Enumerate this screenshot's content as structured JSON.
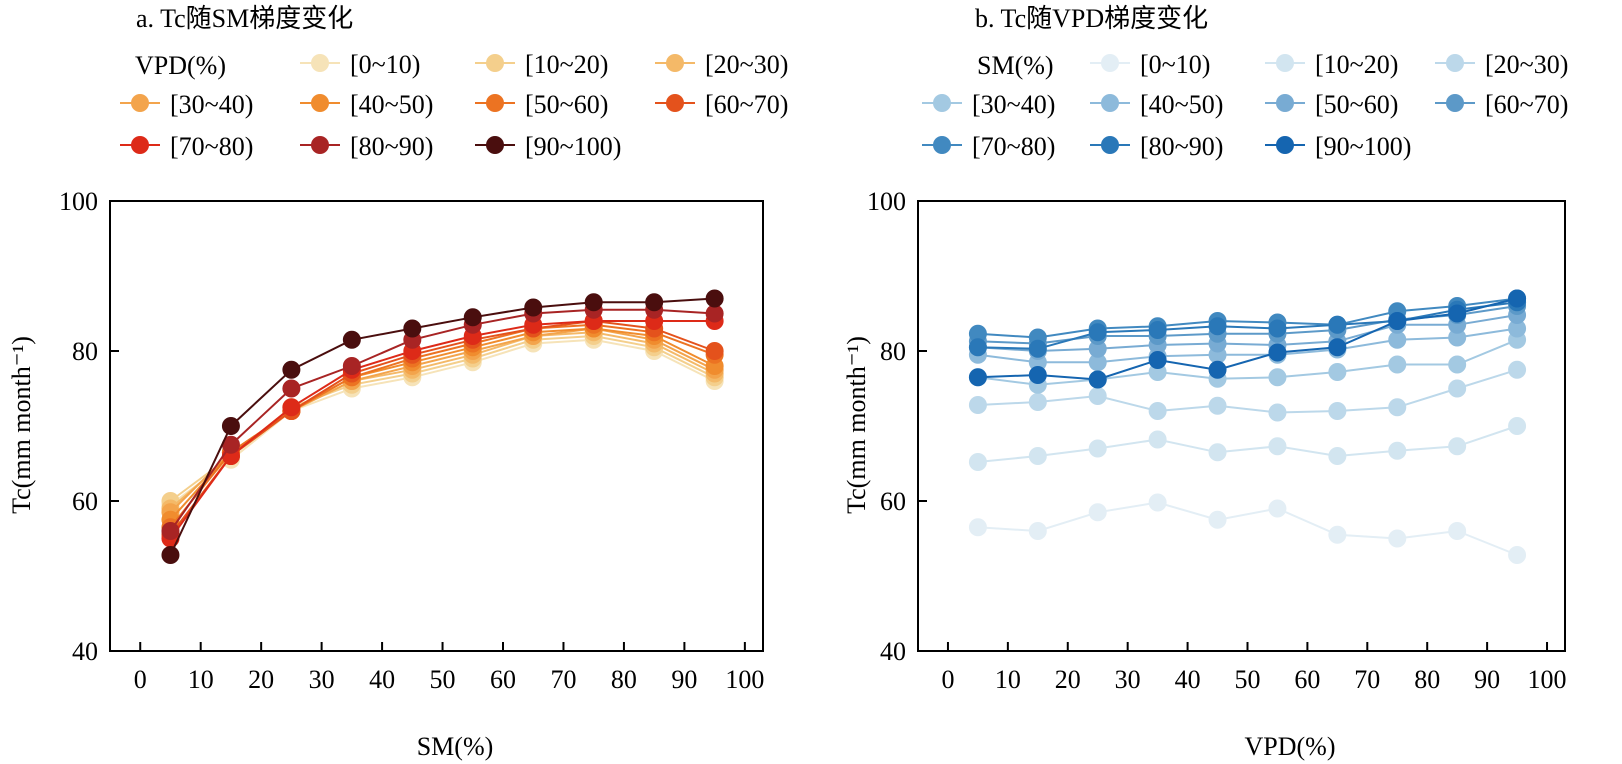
{
  "figure": {
    "panels": [
      {
        "title": "a. Tc随SM梯度变化",
        "legend_title": "VPD(%)",
        "xlabel": "SM(%)",
        "ylabel": "Tc(mm month⁻¹)"
      },
      {
        "title": "b. Tc随VPD梯度变化",
        "legend_title": "SM(%)",
        "xlabel": "VPD(%)",
        "ylabel": "Tc(mm month⁻¹)"
      }
    ]
  },
  "chart_data": [
    {
      "type": "line",
      "title": "a. Tc随SM梯度变化",
      "xlabel": "SM(%)",
      "ylabel": "Tc(mm month⁻¹)",
      "legend_title": "VPD(%)",
      "legend_position": "top",
      "xlim": [
        -5,
        103
      ],
      "ylim": [
        40,
        100
      ],
      "xticks": [
        0,
        10,
        20,
        30,
        40,
        50,
        60,
        70,
        80,
        90,
        100
      ],
      "yticks": [
        40,
        60,
        80,
        100
      ],
      "grid": false,
      "x": [
        5,
        15,
        25,
        35,
        45,
        55,
        65,
        75,
        85,
        95
      ],
      "series": [
        {
          "name": "[0~10)",
          "color": "#f6e3b8",
          "values": [
            59.5,
            65.5,
            72.0,
            75.0,
            76.5,
            78.5,
            81.0,
            81.5,
            80.0,
            76.0
          ]
        },
        {
          "name": "[10~20)",
          "color": "#f4cf8c",
          "values": [
            60.0,
            66.0,
            72.5,
            75.5,
            77.0,
            79.0,
            81.5,
            82.0,
            80.5,
            76.5
          ]
        },
        {
          "name": "[20~30)",
          "color": "#f4b968",
          "values": [
            59.0,
            66.0,
            72.0,
            76.0,
            77.5,
            79.5,
            82.0,
            82.5,
            81.0,
            77.0
          ]
        },
        {
          "name": "[30~40)",
          "color": "#f3a44c",
          "values": [
            58.5,
            66.5,
            72.0,
            76.0,
            78.0,
            80.0,
            82.0,
            83.0,
            81.5,
            77.5
          ]
        },
        {
          "name": "[40~50)",
          "color": "#f08c2e",
          "values": [
            57.5,
            66.5,
            72.0,
            76.5,
            78.5,
            80.5,
            82.5,
            83.0,
            82.0,
            78.0
          ]
        },
        {
          "name": "[50~60)",
          "color": "#ec7322",
          "values": [
            56.5,
            66.5,
            72.0,
            76.5,
            79.0,
            81.0,
            83.0,
            83.5,
            82.5,
            79.5
          ]
        },
        {
          "name": "[60~70)",
          "color": "#e4521c",
          "values": [
            55.5,
            66.0,
            72.0,
            77.0,
            79.5,
            81.5,
            83.0,
            84.0,
            83.0,
            80.0
          ]
        },
        {
          "name": "[70~80)",
          "color": "#dd2a18",
          "values": [
            55.0,
            66.0,
            72.5,
            77.5,
            80.0,
            82.0,
            83.5,
            84.0,
            84.0,
            84.0
          ]
        },
        {
          "name": "[80~90)",
          "color": "#a82424",
          "values": [
            56.0,
            67.5,
            75.0,
            78.0,
            81.5,
            83.5,
            85.0,
            85.5,
            85.5,
            85.0
          ]
        },
        {
          "name": "[90~100)",
          "color": "#4a0e0e",
          "values": [
            52.8,
            70.0,
            77.5,
            81.5,
            83.0,
            84.5,
            85.8,
            86.5,
            86.5,
            87.0
          ]
        }
      ]
    },
    {
      "type": "line",
      "title": "b. Tc随VPD梯度变化",
      "xlabel": "VPD(%)",
      "ylabel": "Tc(mm month⁻¹)",
      "legend_title": "SM(%)",
      "legend_position": "top",
      "xlim": [
        -5,
        103
      ],
      "ylim": [
        40,
        100
      ],
      "xticks": [
        0,
        10,
        20,
        30,
        40,
        50,
        60,
        70,
        80,
        90,
        100
      ],
      "yticks": [
        40,
        60,
        80,
        100
      ],
      "grid": false,
      "x": [
        5,
        15,
        25,
        35,
        45,
        55,
        65,
        75,
        85,
        95
      ],
      "series": [
        {
          "name": "[0~10)",
          "color": "#e3eef5",
          "values": [
            56.5,
            56.0,
            58.5,
            59.8,
            57.5,
            59.0,
            55.5,
            55.0,
            56.0,
            52.8
          ]
        },
        {
          "name": "[10~20)",
          "color": "#d2e5f0",
          "values": [
            65.2,
            66.0,
            67.0,
            68.2,
            66.5,
            67.3,
            66.0,
            66.7,
            67.3,
            70.0
          ]
        },
        {
          "name": "[20~30)",
          "color": "#bcd8ea",
          "values": [
            72.8,
            73.2,
            74.0,
            72.0,
            72.7,
            71.8,
            72.0,
            72.5,
            75.0,
            77.5
          ]
        },
        {
          "name": "[30~40)",
          "color": "#a3c9e2",
          "values": [
            76.5,
            75.5,
            76.2,
            77.2,
            76.3,
            76.5,
            77.2,
            78.2,
            78.2,
            81.5
          ]
        },
        {
          "name": "[40~50)",
          "color": "#8dbadb",
          "values": [
            79.5,
            78.5,
            78.5,
            79.3,
            79.5,
            79.5,
            80.2,
            81.5,
            81.8,
            83.0
          ]
        },
        {
          "name": "[50~60)",
          "color": "#78abd3",
          "values": [
            80.5,
            80.0,
            80.3,
            80.8,
            81.0,
            80.8,
            81.3,
            83.5,
            83.5,
            84.8
          ]
        },
        {
          "name": "[60~70)",
          "color": "#5c99c8",
          "values": [
            81.3,
            81.0,
            82.0,
            82.0,
            82.3,
            82.3,
            82.8,
            84.2,
            84.8,
            86.0
          ]
        },
        {
          "name": "[70~80)",
          "color": "#4189c0",
          "values": [
            82.3,
            81.8,
            83.0,
            83.3,
            84.0,
            83.8,
            83.5,
            85.3,
            86.0,
            87.0
          ]
        },
        {
          "name": "[80~90)",
          "color": "#2a78b8",
          "values": [
            80.5,
            80.3,
            82.5,
            82.8,
            83.3,
            83.0,
            83.5,
            84.0,
            85.5,
            86.5
          ]
        },
        {
          "name": "[90~100)",
          "color": "#1565b0",
          "values": [
            76.5,
            76.8,
            76.2,
            78.8,
            77.5,
            79.8,
            80.5,
            84.0,
            85.0,
            87.0
          ]
        }
      ]
    }
  ]
}
